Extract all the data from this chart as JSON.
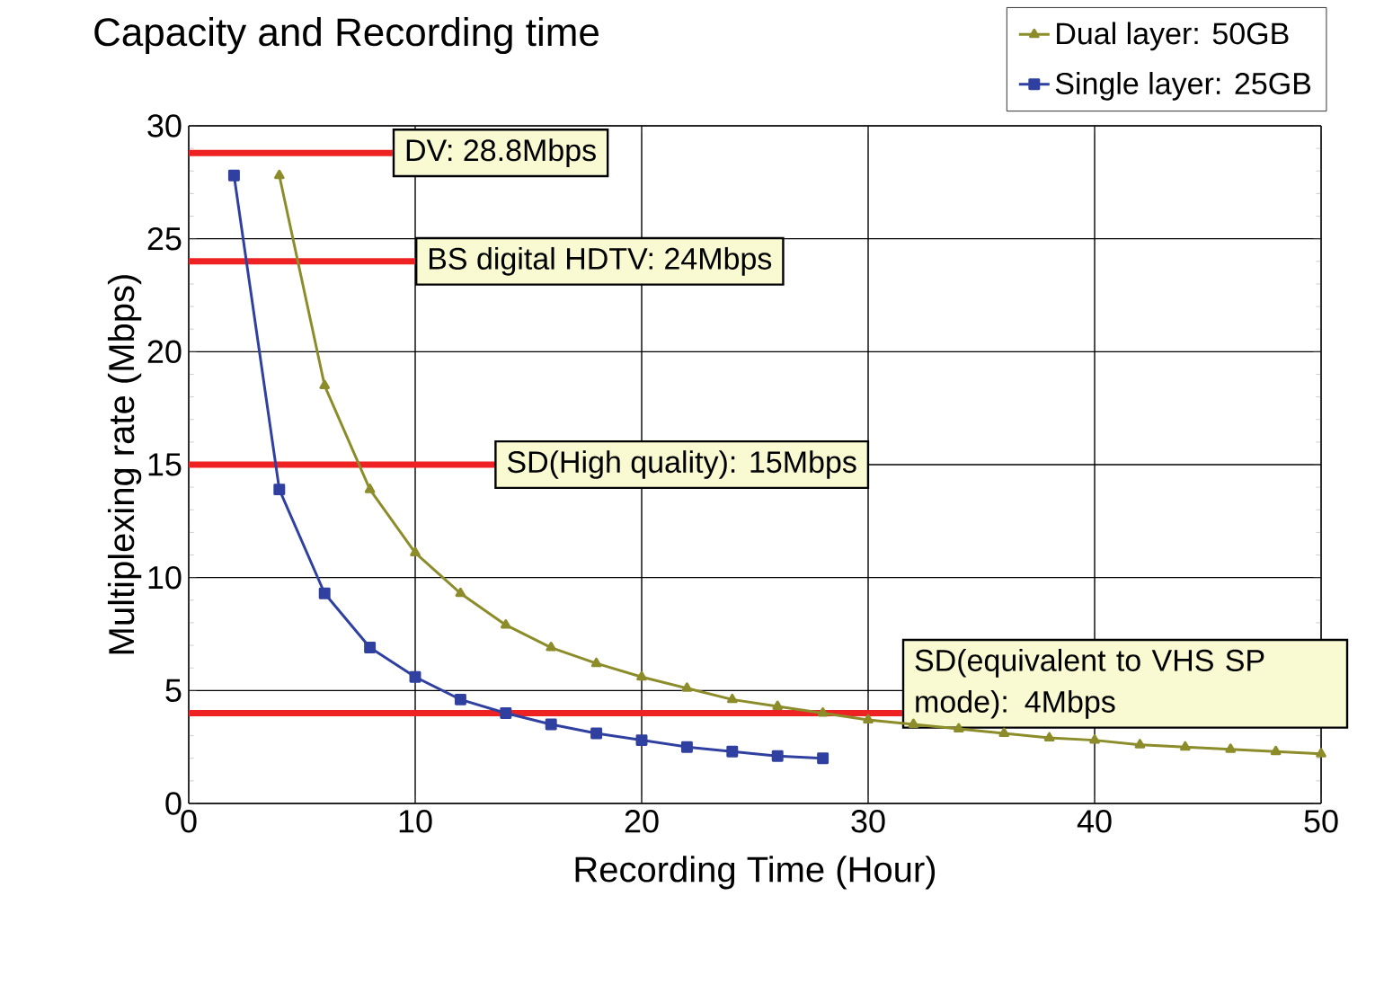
{
  "chart_data": {
    "type": "line",
    "title": "Capacity and Recording time",
    "xlabel": "Recording Time (Hour)",
    "ylabel": "Multiplexing rate (Mbps)",
    "xlim": [
      0,
      50
    ],
    "ylim": [
      0,
      30
    ],
    "xticks": [
      0,
      10,
      20,
      30,
      40,
      50
    ],
    "yticks": [
      0,
      5,
      10,
      15,
      20,
      25,
      30
    ],
    "grid": true,
    "legend": "top right",
    "series": [
      {
        "name": "Dual layer: 50GB",
        "color": "#8c8c2a",
        "marker": "triangle",
        "x": [
          4,
          6,
          8,
          10,
          12,
          14,
          16,
          18,
          20,
          22,
          24,
          26,
          28,
          30,
          32,
          34,
          36,
          38,
          40,
          42,
          44,
          46,
          48,
          50
        ],
        "values": [
          27.8,
          18.5,
          13.9,
          11.1,
          9.3,
          7.9,
          6.9,
          6.2,
          5.6,
          5.1,
          4.6,
          4.3,
          4.0,
          3.7,
          3.5,
          3.3,
          3.1,
          2.9,
          2.8,
          2.6,
          2.5,
          2.4,
          2.3,
          2.2
        ]
      },
      {
        "name": "Single layer: 25GB",
        "color": "#3040a0",
        "marker": "square",
        "x": [
          2,
          4,
          6,
          8,
          10,
          12,
          14,
          16,
          18,
          20,
          22,
          24,
          26,
          28
        ],
        "values": [
          27.8,
          13.9,
          9.3,
          6.9,
          5.6,
          4.6,
          4.0,
          3.5,
          3.1,
          2.8,
          2.5,
          2.3,
          2.1,
          2.0
        ]
      }
    ],
    "ref_lines": [
      {
        "axis": "y",
        "value": 28.8,
        "label": "DV: 28.8Mbps",
        "color": "#ee2222"
      },
      {
        "axis": "y",
        "value": 24,
        "label": "BS digital HDTV: 24Mbps",
        "color": "#ee2222"
      },
      {
        "axis": "y",
        "value": 15,
        "label": "SD(High quality): 15Mbps",
        "color": "#ee2222"
      },
      {
        "axis": "y",
        "value": 4,
        "label": "SD(equivalent to VHS SP mode): 4Mbps",
        "color": "#ee2222"
      }
    ]
  }
}
